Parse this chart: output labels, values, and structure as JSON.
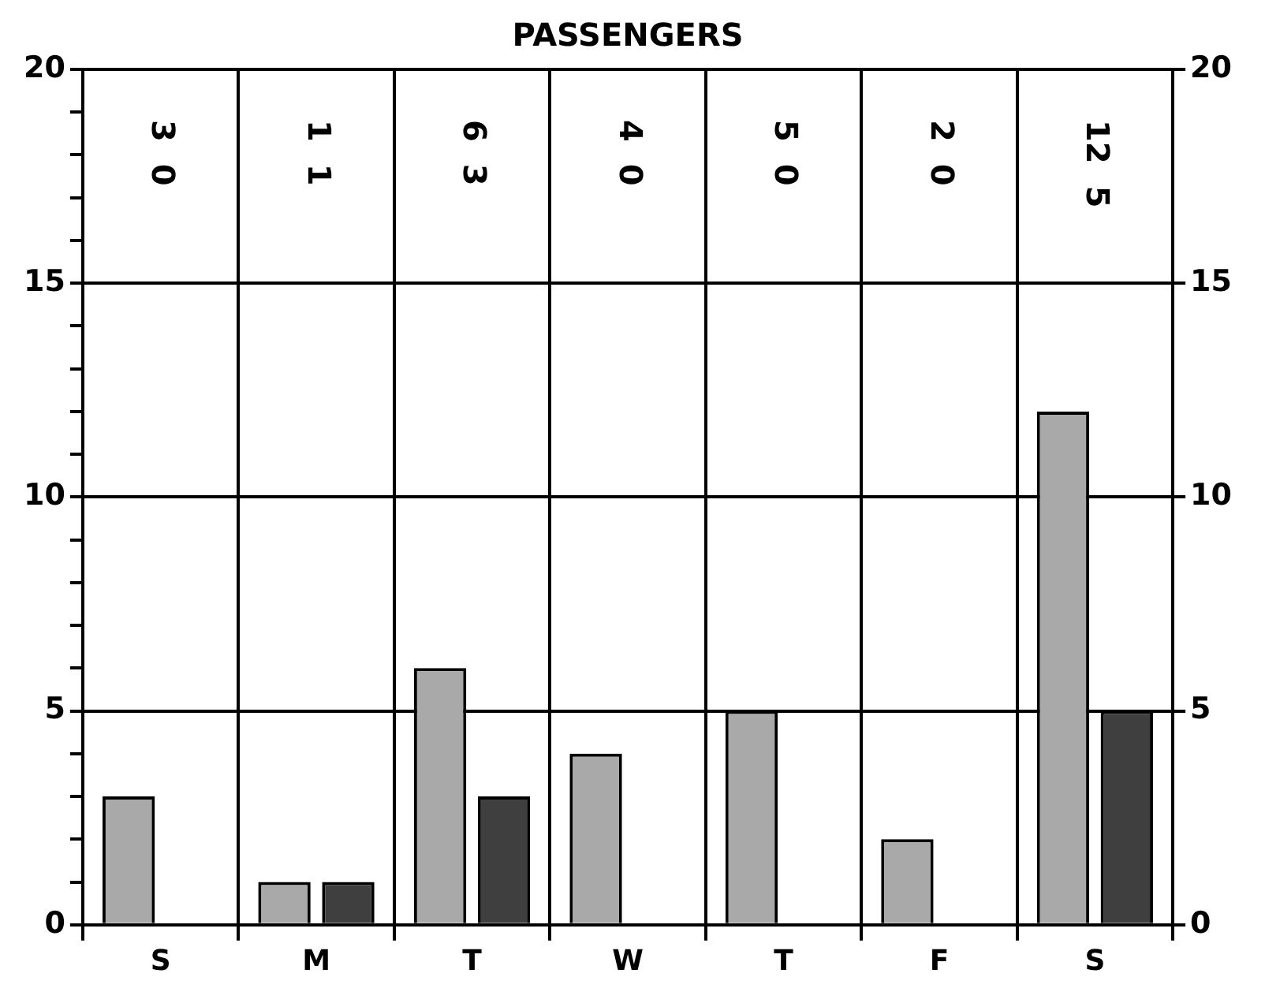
{
  "chart_data": {
    "type": "bar",
    "title": "PASSENGERS",
    "categories": [
      "S",
      "M",
      "T",
      "W",
      "T",
      "F",
      "S"
    ],
    "series": [
      {
        "color": "#a9a9a9",
        "values": [
          3,
          1,
          6,
          4,
          5,
          2,
          12
        ]
      },
      {
        "color": "#3f3f3f",
        "values": [
          0,
          1,
          3,
          0,
          0,
          0,
          5
        ]
      }
    ],
    "ylim": [
      0,
      20
    ],
    "yticks": [
      0,
      {
        "value": 1,
        "label": null
      },
      {
        "value": 2,
        "label": null
      },
      {
        "value": 3,
        "label": null
      },
      {
        "value": 4,
        "label": null
      },
      5,
      {
        "value": 6,
        "label": null
      },
      {
        "value": 7,
        "label": null
      },
      {
        "value": 8,
        "label": null
      },
      {
        "value": 9,
        "label": null
      },
      10,
      {
        "value": 11,
        "label": null
      },
      {
        "value": 12,
        "label": null
      },
      {
        "value": 13,
        "label": null
      },
      {
        "value": 14,
        "label": null
      },
      15,
      {
        "value": 16,
        "label": null
      },
      {
        "value": 17,
        "label": null
      },
      {
        "value": 18,
        "label": null
      },
      {
        "value": 19,
        "label": null
      },
      20
    ],
    "y2lim": [
      0,
      20
    ],
    "y2ticks": [
      0,
      5,
      10,
      15,
      20
    ],
    "grid": true,
    "annotations": [
      "3",
      "0",
      "1",
      "1",
      "6",
      "3",
      "4",
      "0",
      "5",
      "0",
      "2",
      "0",
      "12",
      "5"
    ]
  }
}
